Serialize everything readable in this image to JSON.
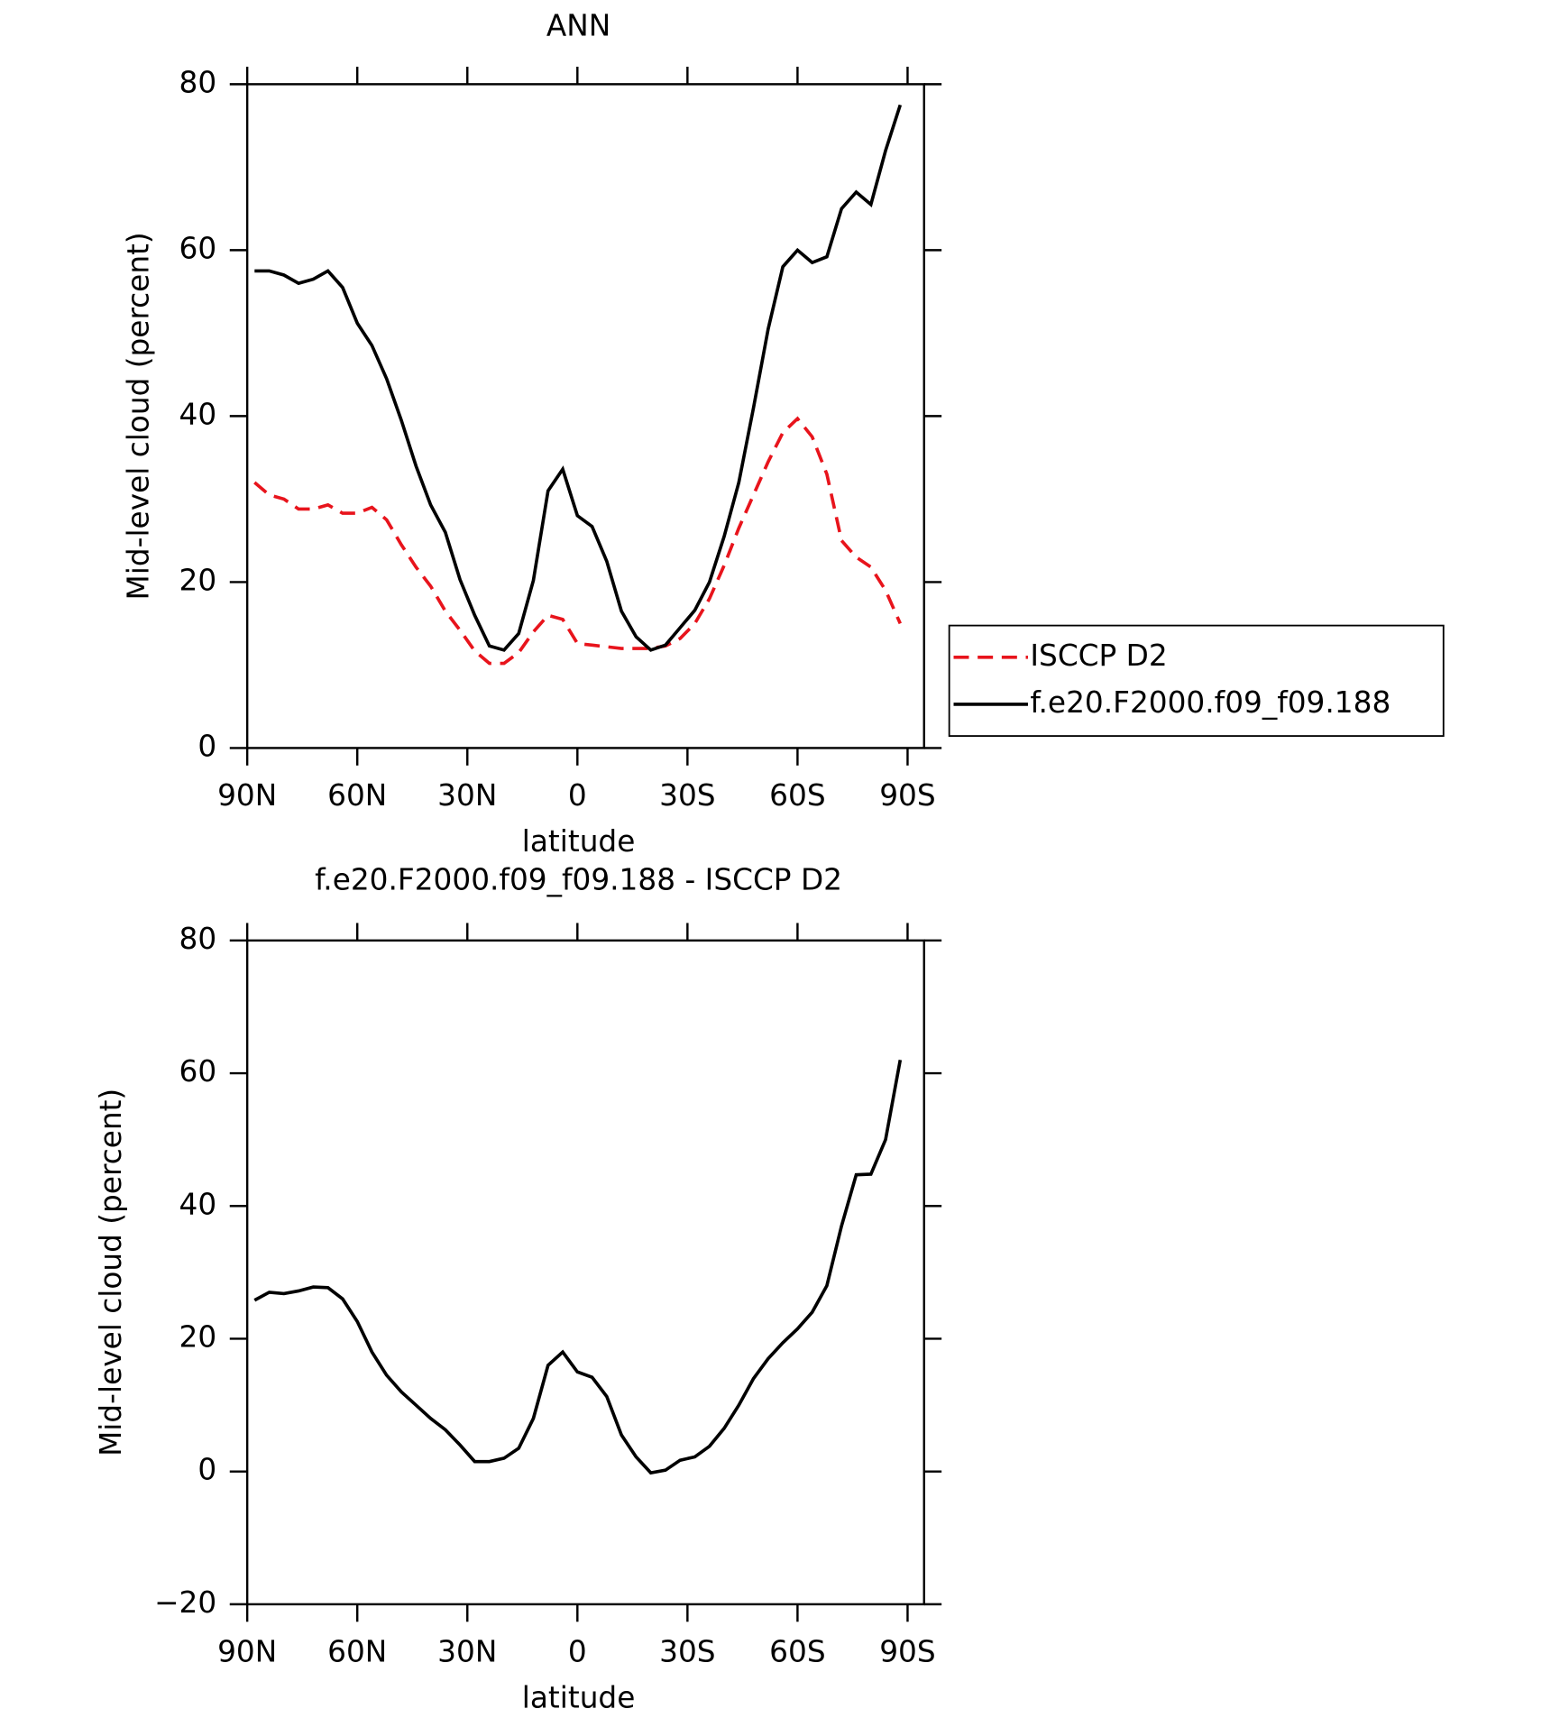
{
  "chart_data": [
    {
      "type": "line",
      "title": "ANN",
      "xlabel": "latitude",
      "ylabel": "Mid-level cloud (percent)",
      "x": [
        88,
        84,
        80,
        76,
        72,
        68,
        64,
        60,
        56,
        52,
        48,
        44,
        40,
        36,
        32,
        28,
        24,
        20,
        16,
        12,
        8,
        4,
        0,
        -4,
        -8,
        -12,
        -16,
        -20,
        -24,
        -28,
        -32,
        -36,
        -40,
        -44,
        -48,
        -52,
        -56,
        -60,
        -64,
        -68,
        -72,
        -76,
        -80,
        -84,
        -88
      ],
      "xlim": [
        90,
        -94.5
      ],
      "xticks": [
        {
          "value": 90,
          "label": "90N"
        },
        {
          "value": 60,
          "label": "60N"
        },
        {
          "value": 30,
          "label": "30N"
        },
        0,
        {
          "value": -30,
          "label": "30S"
        },
        {
          "value": -60,
          "label": "60S"
        },
        {
          "value": -90,
          "label": "90S"
        }
      ],
      "ylim": [
        0,
        80
      ],
      "yticks": [
        0,
        20,
        40,
        60,
        80
      ],
      "legend": "right",
      "series": [
        {
          "name": "ISCCP D2",
          "color": "#e8141c",
          "dash": true,
          "values": [
            32,
            30.5,
            30,
            28.8,
            28.8,
            29.3,
            28.3,
            28.3,
            29,
            27.5,
            24.5,
            21.8,
            19.5,
            16.5,
            14.2,
            11.7,
            10.2,
            10.2,
            11.5,
            14,
            16,
            15.5,
            12.6,
            12.4,
            12.2,
            12,
            12,
            12,
            12.3,
            13.2,
            15,
            18,
            22,
            26.5,
            30.5,
            34.5,
            38,
            39.7,
            37.5,
            33,
            25,
            23,
            21.8,
            19,
            15
          ]
        },
        {
          "name": "f.e20.F2000.f09_f09.188",
          "color": "#000000",
          "dash": false,
          "values": [
            57.5,
            57.5,
            57,
            56,
            56.5,
            57.5,
            55.5,
            51.2,
            48.5,
            44.5,
            39.5,
            34,
            29.3,
            26,
            20.3,
            16,
            12.3,
            11.8,
            13.8,
            20.2,
            31,
            33.6,
            28,
            26.7,
            22.5,
            16.5,
            13.4,
            11.8,
            12.4,
            14.5,
            16.6,
            20,
            25.5,
            32,
            41,
            50.5,
            58,
            60,
            58.5,
            59.2,
            65,
            67,
            65.5,
            72,
            77.5
          ]
        }
      ]
    },
    {
      "type": "line",
      "title": "f.e20.F2000.f09_f09.188 - ISCCP D2",
      "xlabel": "latitude",
      "ylabel": "Mid-level cloud (percent)",
      "x": [
        88,
        84,
        80,
        76,
        72,
        68,
        64,
        60,
        56,
        52,
        48,
        44,
        40,
        36,
        32,
        28,
        24,
        20,
        16,
        12,
        8,
        4,
        0,
        -4,
        -8,
        -12,
        -16,
        -20,
        -24,
        -28,
        -32,
        -36,
        -40,
        -44,
        -48,
        -52,
        -56,
        -60,
        -64,
        -68,
        -72,
        -76,
        -80,
        -84,
        -88
      ],
      "xlim": [
        90,
        -94.5
      ],
      "xticks": [
        {
          "value": 90,
          "label": "90N"
        },
        {
          "value": 60,
          "label": "60N"
        },
        {
          "value": 30,
          "label": "30N"
        },
        0,
        {
          "value": -30,
          "label": "30S"
        },
        {
          "value": -60,
          "label": "60S"
        },
        {
          "value": -90,
          "label": "90S"
        }
      ],
      "ylim": [
        -20,
        80
      ],
      "yticks": [
        {
          "value": -20,
          "label": "−20"
        },
        0,
        20,
        40,
        60,
        80
      ],
      "series": [
        {
          "color": "#000000",
          "dash": false,
          "values": [
            25.8,
            27,
            26.8,
            27.2,
            27.8,
            27.7,
            26,
            22.6,
            18,
            14.5,
            12,
            10,
            8,
            6.3,
            4,
            1.5,
            1.5,
            2,
            3.5,
            8,
            16,
            18,
            15,
            14.2,
            11.3,
            5.5,
            2.2,
            -0.2,
            0.2,
            1.7,
            2.2,
            3.8,
            6.5,
            10,
            14,
            17,
            19.4,
            21.5,
            24,
            28,
            37,
            44.7,
            44.8,
            50,
            62
          ]
        }
      ]
    }
  ]
}
